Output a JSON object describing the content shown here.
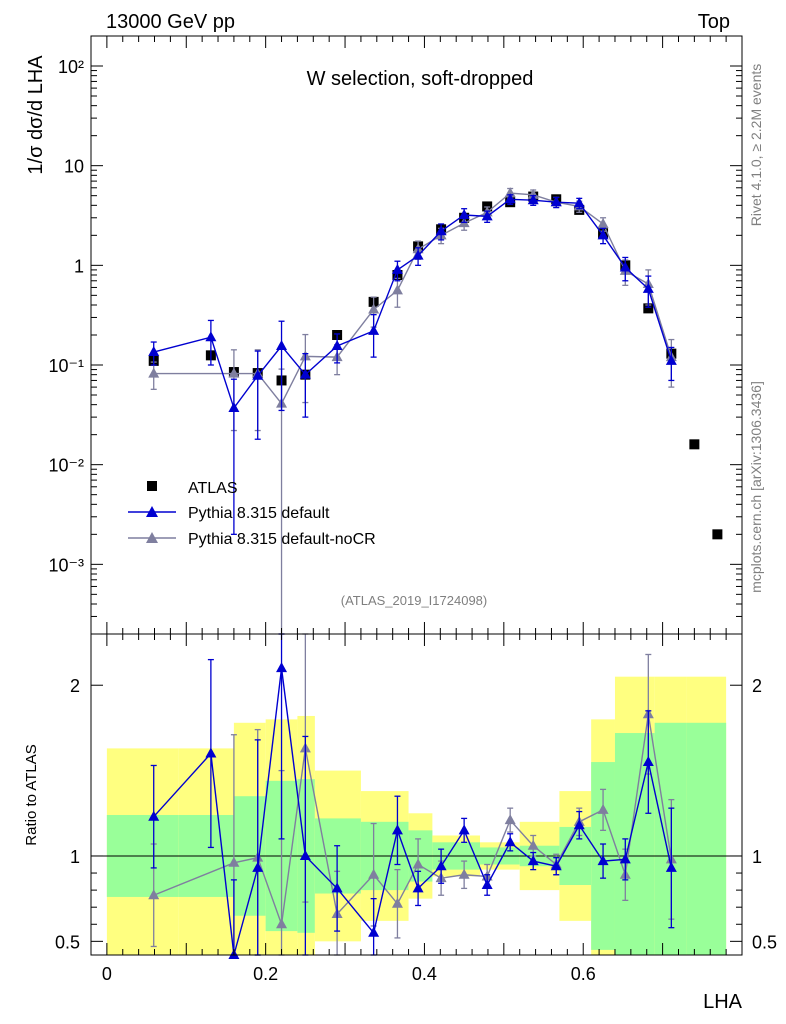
{
  "header": {
    "left": "13000 GeV pp",
    "right": "Top"
  },
  "side": {
    "rivet": "Rivet 4.1.0, ≥ 2.2M events",
    "mcplots": "mcplots.cern.ch [arXiv:1306.3436]"
  },
  "chart_data": {
    "type": "scatter",
    "title": "W selection, soft-dropped",
    "analysis": "(ATLAS_2019_I1724098)",
    "xlabel": "LHA",
    "ylabel_main": "1/σ dσ/d LHA",
    "ylabel_ratio": "Ratio to ATLAS",
    "xlim": [
      -0.02,
      0.8
    ],
    "ylim_main": [
      0.0002,
      200
    ],
    "ylim_ratio": [
      0.42,
      2.3
    ],
    "yscale_main": "log",
    "x_ticks": [
      "0",
      "0.2",
      "0.4",
      "0.6"
    ],
    "x_tick_values": [
      0,
      0.2,
      0.4,
      0.6
    ],
    "y_ticks_main": [
      "10⁻³",
      "10⁻²",
      "10⁻¹",
      "1",
      "10",
      "10²"
    ],
    "y_tick_values_main": [
      0.001,
      0.01,
      0.1,
      1,
      10,
      100
    ],
    "y_ticks_ratio": [
      "0.5",
      "1",
      "2"
    ],
    "y_tick_values_ratio": [
      0.5,
      1,
      2
    ],
    "legend": [
      "ATLAS",
      "Pythia 8.315 default",
      "Pythia 8.315 default-noCR"
    ],
    "legend_position": "lower-left",
    "colors": {
      "atlas": "#000000",
      "default": "#0000d0",
      "nocr": "#7f7f9f",
      "band_total": "#ffff80",
      "band_stat": "#99ff99"
    },
    "atlas": {
      "x": [
        0.059,
        0.131,
        0.16,
        0.19,
        0.22,
        0.25,
        0.29,
        0.336,
        0.366,
        0.392,
        0.421,
        0.45,
        0.479,
        0.508,
        0.537,
        0.566,
        0.595,
        0.625,
        0.653,
        0.682,
        0.711,
        0.74,
        0.769
      ],
      "y": [
        0.11,
        0.125,
        0.085,
        0.083,
        0.07,
        0.08,
        0.2,
        0.43,
        0.8,
        1.55,
        2.3,
        3.0,
        3.9,
        4.3,
        4.9,
        4.6,
        3.6,
        2.1,
        1.0,
        0.37,
        0.13,
        0.016,
        0.002
      ]
    },
    "pythia_default": {
      "x": [
        0.059,
        0.131,
        0.16,
        0.19,
        0.22,
        0.25,
        0.29,
        0.336,
        0.366,
        0.392,
        0.421,
        0.45,
        0.479,
        0.508,
        0.537,
        0.566,
        0.595,
        0.625,
        0.653,
        0.682,
        0.711
      ],
      "y": [
        0.135,
        0.19,
        0.037,
        0.078,
        0.155,
        0.08,
        0.155,
        0.22,
        0.9,
        1.25,
        2.2,
        3.2,
        3.1,
        4.6,
        4.5,
        4.3,
        4.2,
        2.0,
        0.95,
        0.58,
        0.11
      ],
      "err": [
        0.035,
        0.09,
        0.035,
        0.06,
        0.12,
        0.05,
        0.05,
        0.1,
        0.2,
        0.25,
        0.4,
        0.5,
        0.4,
        0.5,
        0.5,
        0.5,
        0.5,
        0.35,
        0.25,
        0.2,
        0.04
      ]
    },
    "pythia_nocr": {
      "x": [
        0.059,
        0.16,
        0.19,
        0.22,
        0.25,
        0.29,
        0.336,
        0.366,
        0.392,
        0.421,
        0.45,
        0.479,
        0.508,
        0.537,
        0.566,
        0.595,
        0.625,
        0.653,
        0.682,
        0.711
      ],
      "y": [
        0.082,
        0.082,
        0.082,
        0.041,
        0.122,
        0.12,
        0.36,
        0.56,
        1.45,
        2.0,
        2.65,
        3.4,
        5.3,
        5.1,
        4.3,
        3.9,
        2.6,
        0.88,
        0.65,
        0.12
      ],
      "err": [
        0.025,
        0.06,
        0.06,
        0.05,
        0.08,
        0.04,
        0.12,
        0.18,
        0.3,
        0.35,
        0.4,
        0.45,
        0.6,
        0.6,
        0.5,
        0.5,
        0.4,
        0.25,
        0.25,
        0.06
      ]
    },
    "ratio_default": {
      "x": [
        0.059,
        0.131,
        0.16,
        0.19,
        0.22,
        0.25,
        0.29,
        0.336,
        0.366,
        0.392,
        0.421,
        0.45,
        0.479,
        0.508,
        0.537,
        0.566,
        0.595,
        0.625,
        0.653,
        0.682,
        0.711
      ],
      "y": [
        1.23,
        1.6,
        0.41,
        0.93,
        2.1,
        1.0,
        0.81,
        0.55,
        1.15,
        0.81,
        0.94,
        1.15,
        0.83,
        1.08,
        0.97,
        0.94,
        1.18,
        0.97,
        0.98,
        1.55,
        0.93
      ],
      "err": [
        0.3,
        0.55,
        0.45,
        0.75,
        1.0,
        0.7,
        0.25,
        0.2,
        0.2,
        0.1,
        0.1,
        0.07,
        0.06,
        0.05,
        0.05,
        0.05,
        0.08,
        0.1,
        0.12,
        0.3,
        0.35
      ]
    },
    "ratio_nocr": {
      "x": [
        0.059,
        0.16,
        0.19,
        0.22,
        0.25,
        0.29,
        0.336,
        0.366,
        0.392,
        0.421,
        0.45,
        0.479,
        0.508,
        0.537,
        0.566,
        0.595,
        0.625,
        0.653,
        0.682,
        0.711
      ],
      "y": [
        0.77,
        0.96,
        0.99,
        0.6,
        1.63,
        0.66,
        0.89,
        0.72,
        0.95,
        0.87,
        0.89,
        0.88,
        1.21,
        1.06,
        0.95,
        1.2,
        1.27,
        0.89,
        1.83,
        0.98
      ],
      "err": [
        0.3,
        0.75,
        0.75,
        0.9,
        0.9,
        0.25,
        0.3,
        0.2,
        0.15,
        0.1,
        0.08,
        0.07,
        0.07,
        0.06,
        0.06,
        0.08,
        0.12,
        0.15,
        0.35,
        0.35
      ]
    },
    "band_bins": [
      {
        "lo": 0.0,
        "hi": 0.09,
        "stat": 0.24,
        "tot": 0.63
      },
      {
        "lo": 0.09,
        "hi": 0.16,
        "stat": 0.24,
        "tot": 0.63
      },
      {
        "lo": 0.16,
        "hi": 0.2,
        "stat": 0.35,
        "tot": 0.78
      },
      {
        "lo": 0.2,
        "hi": 0.24,
        "stat": 0.44,
        "tot": 0.8
      },
      {
        "lo": 0.24,
        "hi": 0.262,
        "stat": 0.45,
        "tot": 0.82
      },
      {
        "lo": 0.262,
        "hi": 0.32,
        "stat": 0.22,
        "tot": 0.5
      },
      {
        "lo": 0.32,
        "hi": 0.38,
        "stat": 0.2,
        "tot": 0.38
      },
      {
        "lo": 0.38,
        "hi": 0.41,
        "stat": 0.15,
        "tot": 0.25
      },
      {
        "lo": 0.41,
        "hi": 0.47,
        "stat": 0.08,
        "tot": 0.12
      },
      {
        "lo": 0.47,
        "hi": 0.52,
        "stat": 0.05,
        "tot": 0.08
      },
      {
        "lo": 0.52,
        "hi": 0.57,
        "stat": 0.06,
        "tot": 0.2
      },
      {
        "lo": 0.57,
        "hi": 0.61,
        "stat": 0.17,
        "tot": 0.38
      },
      {
        "lo": 0.61,
        "hi": 0.64,
        "stat": 0.55,
        "tot": 0.8
      },
      {
        "lo": 0.64,
        "hi": 0.69,
        "stat": 0.72,
        "tot": 1.05
      },
      {
        "lo": 0.69,
        "hi": 0.73,
        "stat": 0.78,
        "tot": 1.05
      },
      {
        "lo": 0.73,
        "hi": 0.78,
        "stat": 0.78,
        "tot": 1.05
      }
    ]
  }
}
